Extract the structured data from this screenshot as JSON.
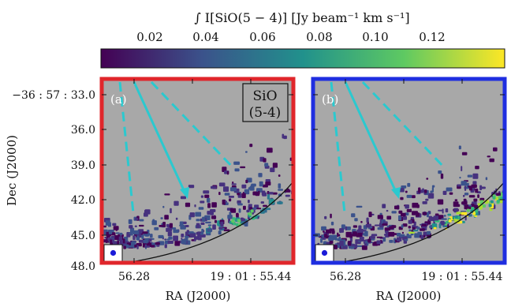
{
  "colorbar": {
    "label": "∫ I[SiO(5 − 4)] [Jy beam⁻¹ km s⁻¹]",
    "ticks": [
      "0.02",
      "0.04",
      "0.06",
      "0.08",
      "0.10",
      "0.12"
    ],
    "colormap": [
      "#440154",
      "#3b528b",
      "#21918c",
      "#5ec962",
      "#fde725"
    ]
  },
  "axes": {
    "ylabel": "Dec (J2000)",
    "yticks": [
      "−36 : 57 : 33.0",
      "36.0",
      "39.0",
      "42.0",
      "45.0",
      "48.0"
    ],
    "xlabel": "RA (J2000)",
    "xticks": [
      "56.28",
      "19 : 01 : 55.44"
    ]
  },
  "panels": [
    {
      "label": "(a)",
      "frame_color": "#e0262b",
      "legend_line1": "SiO",
      "legend_line2": "(5-4)"
    },
    {
      "label": "(b)",
      "frame_color": "#1f2ee0"
    }
  ],
  "colors": {
    "background": "#a8a8a8",
    "arrow": "#2bc9cf",
    "beam": "#1a1ad8"
  }
}
